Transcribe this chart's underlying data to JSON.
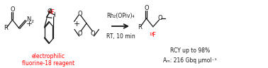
{
  "bg_color": "#ffffff",
  "black": "#1a1a1a",
  "red": "#ff0000",
  "figsize": [
    3.78,
    0.96
  ],
  "dpi": 100,
  "arrow_label_top": "Rh₂(OPiv)₄",
  "arrow_label_bot": "RT, 10 min",
  "label_electrophilic_line1": "electrophilic",
  "label_electrophilic_line2": "fluorine-18 reagent",
  "rcy_text": "RCY up to 98%",
  "am_text": "Aₘ: 216 Gbq μmol⁻¹"
}
